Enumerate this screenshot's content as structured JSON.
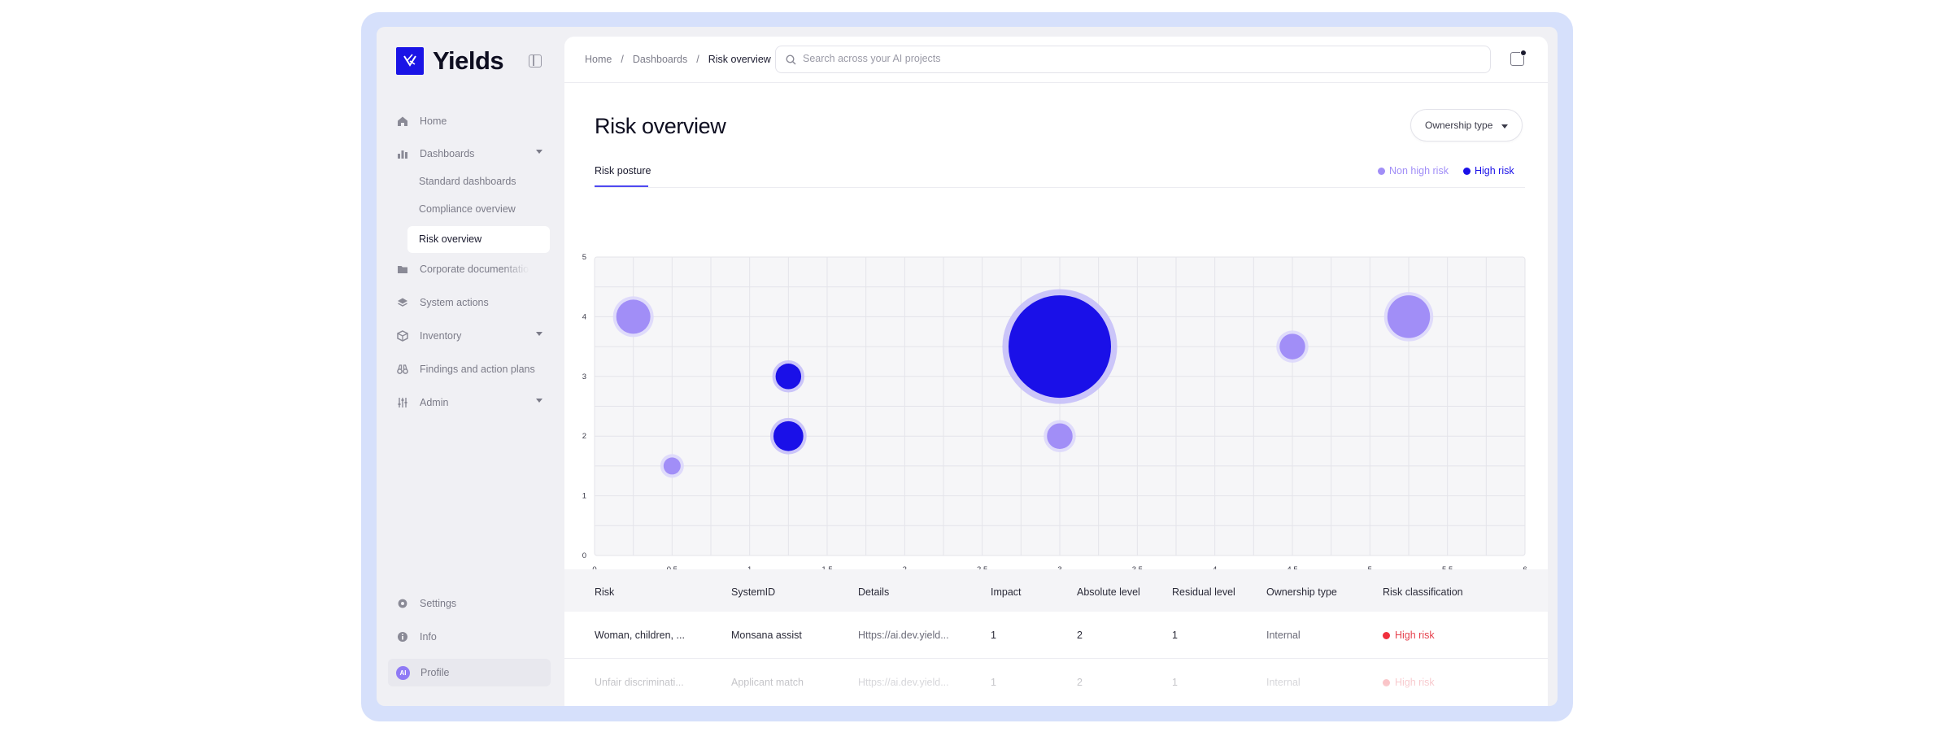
{
  "app": {
    "name": "Yields"
  },
  "sidebar": {
    "items": [
      {
        "label": "Home",
        "icon": "home-icon"
      },
      {
        "label": "Dashboards",
        "icon": "bar-chart-icon",
        "expanded": true
      },
      {
        "label": "Corporate documentation",
        "icon": "folder-icon"
      },
      {
        "label": "System actions",
        "icon": "layers-icon"
      },
      {
        "label": "Inventory",
        "icon": "box-icon"
      },
      {
        "label": "Findings and action plans",
        "icon": "binoculars-icon"
      },
      {
        "label": "Admin",
        "icon": "sliders-icon"
      }
    ],
    "dashboard_subitems": [
      "Standard dashboards",
      "Compliance overview",
      "Risk overview"
    ],
    "active_subitem": "Risk overview",
    "bottom": [
      {
        "label": "Settings",
        "icon": "gear-icon"
      },
      {
        "label": "Info",
        "icon": "info-icon"
      }
    ],
    "profile": {
      "label": "Profile",
      "initials": "AI"
    }
  },
  "header": {
    "breadcrumb": [
      "Home",
      "Dashboards",
      "Risk overview"
    ],
    "search_placeholder": "Search across your AI projects"
  },
  "page": {
    "title": "Risk overview",
    "filter_label": "Ownership type",
    "tabs": [
      "Risk posture"
    ],
    "legend": [
      {
        "label": "Non high risk",
        "color": "#a18ef7"
      },
      {
        "label": "High risk",
        "color": "#1a10e8"
      }
    ]
  },
  "chart_data": {
    "type": "scatter",
    "subtype": "bubble",
    "x_ticks": [
      "0",
      "0.5",
      "1",
      "1.5",
      "2",
      "2.5",
      "3",
      "3.5",
      "4",
      "4.5",
      "5",
      "5.5",
      "6"
    ],
    "y_ticks": [
      "0",
      "1",
      "2",
      "3",
      "4",
      "5"
    ],
    "xlim": [
      0,
      6
    ],
    "ylim": [
      0,
      5
    ],
    "grid": true,
    "series": [
      {
        "name": "Non high risk",
        "color": "#a18ef7",
        "points": [
          {
            "x": 0.25,
            "y": 4,
            "size": 2
          },
          {
            "x": 0.5,
            "y": 1.5,
            "size": 1
          },
          {
            "x": 3,
            "y": 2,
            "size": 1.5
          },
          {
            "x": 4.5,
            "y": 3.5,
            "size": 1.5
          },
          {
            "x": 5.25,
            "y": 4,
            "size": 2.5
          }
        ]
      },
      {
        "name": "High risk",
        "color": "#1a10e8",
        "points": [
          {
            "x": 1.25,
            "y": 3,
            "size": 1.5
          },
          {
            "x": 1.25,
            "y": 2,
            "size": 1.75
          },
          {
            "x": 3,
            "y": 3.5,
            "size": 6
          }
        ]
      }
    ]
  },
  "table": {
    "columns": [
      "Risk",
      "SystemID",
      "Details",
      "Impact",
      "Absolute level",
      "Residual level",
      "Ownership type",
      "Risk classification"
    ],
    "rows": [
      [
        "Woman, children, ...",
        "Monsana assist",
        "Https://ai.dev.yield...",
        "1",
        "2",
        "1",
        "Internal",
        "High risk"
      ],
      [
        "Unfair discriminati...",
        "Applicant match",
        "Https://ai.dev.yield...",
        "1",
        "2",
        "1",
        "Internal",
        "High risk"
      ]
    ]
  }
}
